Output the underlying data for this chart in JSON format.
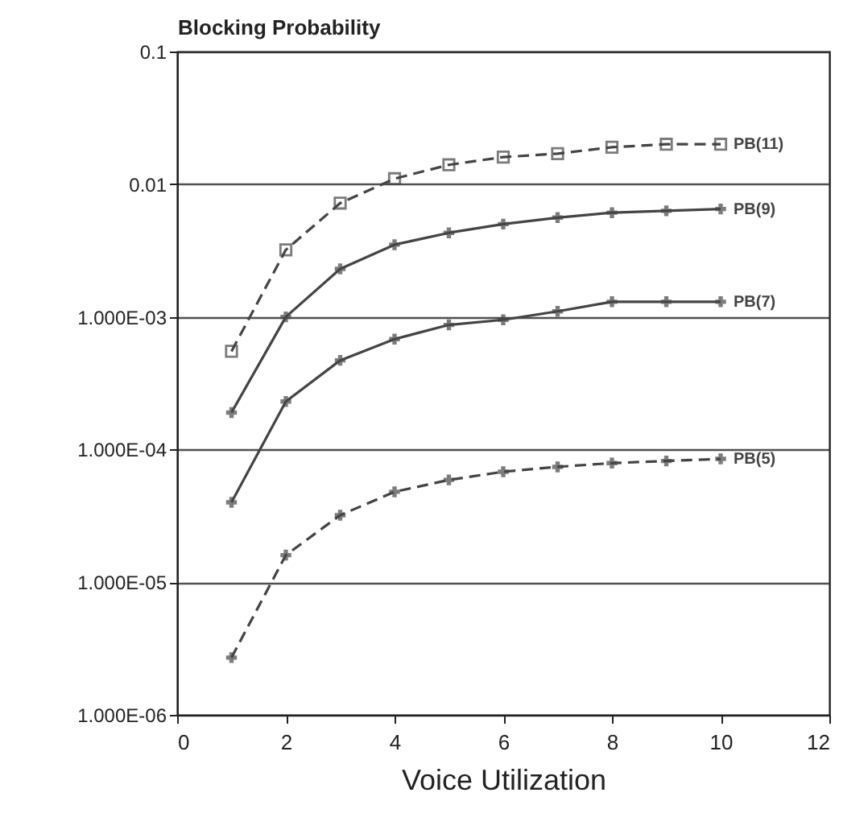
{
  "chart_data": {
    "type": "line",
    "ylabel": "Blocking Probability",
    "xlabel": "Voice Utilization",
    "log": "y",
    "grid": "y",
    "xlim": [
      0,
      12
    ],
    "xticks": [
      0,
      2,
      4,
      6,
      8,
      10,
      12
    ],
    "ylim": [
      1e-06,
      0.1
    ],
    "yticks": [
      {
        "value": 0.1,
        "label": "0.1"
      },
      {
        "value": 0.01,
        "label": "0.01"
      },
      {
        "value": 0.001,
        "label": "1.000E-03"
      },
      {
        "value": 0.0001,
        "label": "1.000E-04"
      },
      {
        "value": 1e-05,
        "label": "1.000E-05"
      },
      {
        "value": 1e-06,
        "label": "1.000E-06"
      }
    ],
    "x": [
      1,
      2,
      3,
      4,
      5,
      6,
      7,
      8,
      9,
      10
    ],
    "series": [
      {
        "name": "PB(11)",
        "color": "#444444",
        "marker": "square",
        "line_style": "dashed",
        "values": [
          0.00055,
          0.0032,
          0.0072,
          0.011,
          0.014,
          0.016,
          0.017,
          0.019,
          0.02,
          0.02
        ]
      },
      {
        "name": "PB(9)",
        "color": "#444444",
        "marker": "cross",
        "line_style": "solid",
        "values": [
          0.00019,
          0.001,
          0.0023,
          0.0035,
          0.0043,
          0.005,
          0.0056,
          0.0061,
          0.0063,
          0.0065
        ]
      },
      {
        "name": "PB(7)",
        "color": "#444444",
        "marker": "cross",
        "line_style": "solid",
        "values": [
          4e-05,
          0.00023,
          0.00047,
          0.00068,
          0.00087,
          0.00095,
          0.0011,
          0.0013,
          0.0013,
          0.0013
        ]
      },
      {
        "name": "PB(5)",
        "color": "#444444",
        "marker": "cross",
        "line_style": "dashed",
        "values": [
          2.7e-06,
          1.6e-05,
          3.2e-05,
          4.8e-05,
          5.9e-05,
          6.8e-05,
          7.4e-05,
          7.9e-05,
          8.2e-05,
          8.5e-05
        ]
      }
    ]
  }
}
